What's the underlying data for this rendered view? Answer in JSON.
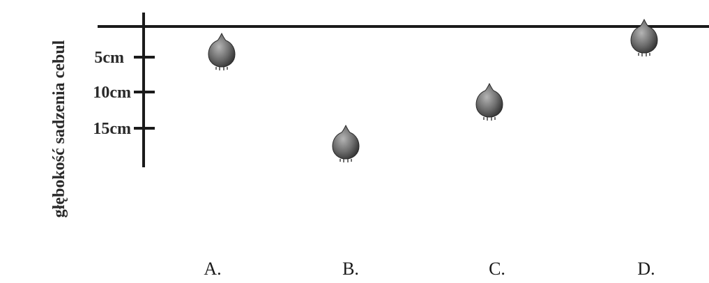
{
  "diagram": {
    "y_axis_label": "głębokość sadzenia cebul",
    "ticks": [
      {
        "label": "5cm",
        "value": 5
      },
      {
        "label": "10cm",
        "value": 10
      },
      {
        "label": "15cm",
        "value": 15
      }
    ],
    "options": [
      {
        "label": "A.",
        "depth_cm": 4
      },
      {
        "label": "B.",
        "depth_cm": 17
      },
      {
        "label": "C.",
        "depth_cm": 11
      },
      {
        "label": "D.",
        "depth_cm": 1
      }
    ],
    "bulb_icon": "onion-bulb-icon",
    "colors": {
      "lines": "#1a1a1a",
      "bulb": "#6e6e6e",
      "bulb_dark": "#3a3a3a"
    }
  }
}
